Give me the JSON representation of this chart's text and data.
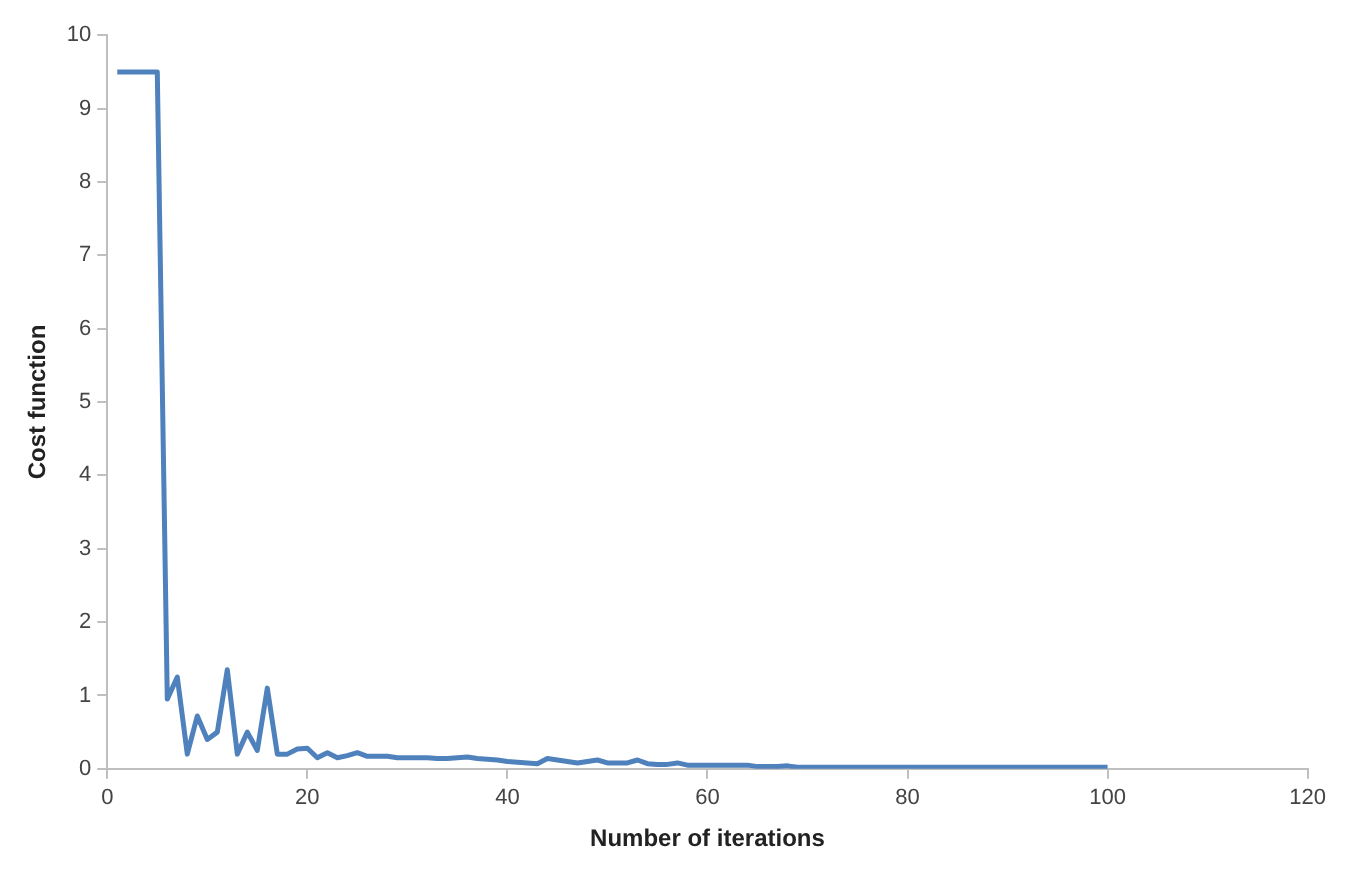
{
  "chart_data": {
    "type": "line",
    "xlabel": "Number of iterations",
    "ylabel": "Cost function",
    "xlim": [
      0,
      120
    ],
    "xticks": [
      0,
      20,
      40,
      60,
      80,
      100,
      120
    ],
    "ylim": [
      0,
      10
    ],
    "yticks": [
      0,
      1,
      2,
      3,
      4,
      5,
      6,
      7,
      8,
      9,
      10
    ],
    "grid": false,
    "legend": false,
    "marker": "none",
    "x": [
      1,
      2,
      3,
      4,
      5,
      6,
      7,
      8,
      9,
      10,
      11,
      12,
      13,
      14,
      15,
      16,
      17,
      18,
      19,
      20,
      21,
      22,
      23,
      24,
      25,
      26,
      27,
      28,
      29,
      30,
      31,
      32,
      33,
      34,
      35,
      36,
      37,
      38,
      39,
      40,
      41,
      42,
      43,
      44,
      45,
      46,
      47,
      48,
      49,
      50,
      51,
      52,
      53,
      54,
      55,
      56,
      57,
      58,
      59,
      60,
      61,
      62,
      63,
      64,
      65,
      66,
      67,
      68,
      69,
      70,
      75,
      80,
      85,
      90,
      95,
      100
    ],
    "series": [
      {
        "color": "#4f81bd",
        "values": [
          9.5,
          9.5,
          9.5,
          9.5,
          9.5,
          0.95,
          1.25,
          0.2,
          0.72,
          0.4,
          0.5,
          1.35,
          0.2,
          0.5,
          0.25,
          1.1,
          0.2,
          0.2,
          0.27,
          0.28,
          0.15,
          0.22,
          0.15,
          0.18,
          0.22,
          0.17,
          0.17,
          0.17,
          0.15,
          0.15,
          0.15,
          0.15,
          0.14,
          0.14,
          0.15,
          0.16,
          0.14,
          0.13,
          0.12,
          0.1,
          0.09,
          0.08,
          0.07,
          0.14,
          0.12,
          0.1,
          0.08,
          0.1,
          0.12,
          0.08,
          0.08,
          0.08,
          0.12,
          0.07,
          0.06,
          0.06,
          0.08,
          0.05,
          0.05,
          0.05,
          0.05,
          0.05,
          0.05,
          0.05,
          0.03,
          0.03,
          0.03,
          0.04,
          0.02,
          0.02,
          0.02,
          0.02,
          0.02,
          0.02,
          0.02,
          0.02
        ]
      }
    ]
  }
}
